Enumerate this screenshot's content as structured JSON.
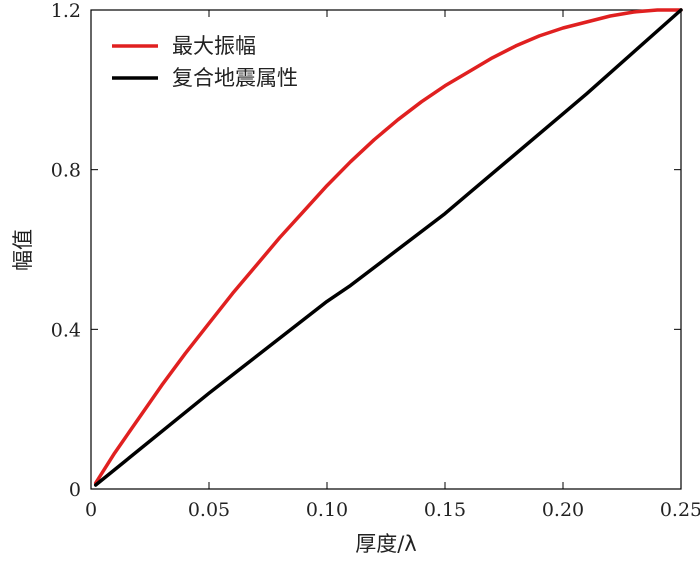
{
  "chart_data": {
    "type": "line",
    "xlabel": "厚度/λ",
    "ylabel": "幅值",
    "xlim": [
      0,
      0.25
    ],
    "ylim": [
      0,
      1.2
    ],
    "x_ticks": [
      0,
      0.05,
      0.1,
      0.15,
      0.2,
      0.25
    ],
    "x_tick_labels": [
      "0",
      "0.05",
      "0.10",
      "0.15",
      "0.20",
      "0.25"
    ],
    "y_ticks": [
      0,
      0.4,
      0.8,
      1.2
    ],
    "y_tick_labels": [
      "0",
      "0.4",
      "0.8",
      "1.2"
    ],
    "grid": false,
    "legend_position": "top-left",
    "series": [
      {
        "name": "最大振幅",
        "color": "#e02020",
        "x": [
          0.002,
          0.01,
          0.02,
          0.03,
          0.04,
          0.05,
          0.06,
          0.07,
          0.08,
          0.09,
          0.1,
          0.11,
          0.12,
          0.13,
          0.14,
          0.15,
          0.16,
          0.17,
          0.18,
          0.19,
          0.2,
          0.21,
          0.22,
          0.23,
          0.24,
          0.25
        ],
        "y": [
          0.015,
          0.09,
          0.175,
          0.26,
          0.34,
          0.415,
          0.49,
          0.56,
          0.63,
          0.695,
          0.76,
          0.82,
          0.875,
          0.925,
          0.97,
          1.01,
          1.045,
          1.08,
          1.11,
          1.135,
          1.155,
          1.17,
          1.185,
          1.195,
          1.2,
          1.2
        ]
      },
      {
        "name": "复合地震属性",
        "color": "#000000",
        "x": [
          0.002,
          0.05,
          0.1,
          0.11,
          0.15,
          0.16,
          0.2,
          0.21,
          0.25
        ],
        "y": [
          0.01,
          0.24,
          0.47,
          0.51,
          0.69,
          0.74,
          0.94,
          0.99,
          1.2
        ]
      }
    ]
  }
}
